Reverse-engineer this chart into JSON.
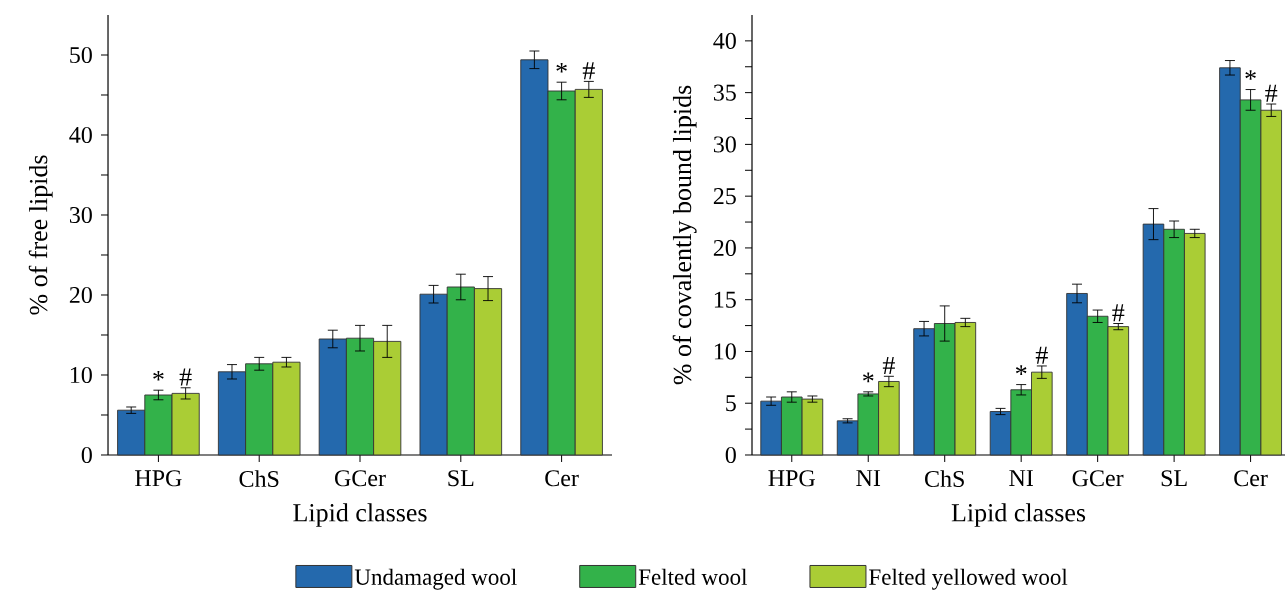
{
  "chart_data": [
    {
      "type": "bar",
      "xlabel": "Lipid classes",
      "ylabel": "% of free lipids",
      "categories": [
        "HPG",
        "ChS",
        "GCer",
        "SL",
        "Cer"
      ],
      "series": [
        {
          "name": "Undamaged wool",
          "color": "#2469ad",
          "values": [
            5.6,
            10.4,
            14.5,
            20.1,
            49.4
          ],
          "errors": [
            0.4,
            0.9,
            1.1,
            1.1,
            1.1
          ]
        },
        {
          "name": "Felted wool",
          "color": "#33b24a",
          "values": [
            7.5,
            11.4,
            14.6,
            21.0,
            45.5
          ],
          "errors": [
            0.6,
            0.8,
            1.6,
            1.6,
            1.1
          ]
        },
        {
          "name": "Felted yellowed wool",
          "color": "#aacd35",
          "values": [
            7.7,
            11.6,
            14.2,
            20.8,
            45.7
          ],
          "errors": [
            0.7,
            0.6,
            2.0,
            1.5,
            1.0
          ]
        }
      ],
      "ylim": [
        0,
        55
      ],
      "yticks": [
        0,
        {
          "value": 5,
          "label": null
        },
        10,
        {
          "value": 15,
          "label": null
        },
        20,
        {
          "value": 25,
          "label": null
        },
        30,
        {
          "value": 35,
          "label": null
        },
        40,
        {
          "value": 45,
          "label": null
        },
        50
      ],
      "annotations": [
        "*",
        "#",
        "*",
        "#"
      ],
      "legend": "bottom"
    },
    {
      "type": "bar",
      "xlabel": "Lipid classes",
      "ylabel": "% of covalently bound lipids",
      "categories": [
        "HPG",
        "NI",
        "ChS",
        "NI",
        "GCer",
        "SL",
        "Cer"
      ],
      "series": [
        {
          "color": "#2469ad",
          "values": [
            5.2,
            3.3,
            12.2,
            4.2,
            15.6,
            22.3,
            37.4
          ],
          "errors": [
            0.4,
            0.2,
            0.7,
            0.3,
            0.9,
            1.5,
            0.7
          ]
        },
        {
          "color": "#33b24a",
          "values": [
            5.6,
            5.9,
            12.7,
            6.3,
            13.4,
            21.8,
            34.3
          ],
          "errors": [
            0.5,
            0.2,
            1.7,
            0.5,
            0.6,
            0.8,
            1.0
          ]
        },
        {
          "color": "#aacd35",
          "values": [
            5.4,
            7.1,
            12.8,
            8.0,
            12.4,
            21.4,
            33.3
          ],
          "errors": [
            0.3,
            0.5,
            0.4,
            0.6,
            0.3,
            0.4,
            0.6
          ]
        }
      ],
      "ylim": [
        0,
        42.5
      ],
      "yticks": [
        0,
        {
          "value": 2.5,
          "label": null
        },
        5,
        {
          "value": 7.5,
          "label": null
        },
        10,
        {
          "value": 12.5,
          "label": null
        },
        15,
        {
          "value": 17.5,
          "label": null
        },
        20,
        {
          "value": 22.5,
          "label": null
        },
        25,
        {
          "value": 27.5,
          "label": null
        },
        30,
        {
          "value": 32.5,
          "label": null
        },
        35,
        {
          "value": 37.5,
          "label": null
        },
        40
      ],
      "annotations": [
        "*",
        "#",
        "*",
        "#",
        "#",
        "*",
        "#"
      ]
    }
  ]
}
